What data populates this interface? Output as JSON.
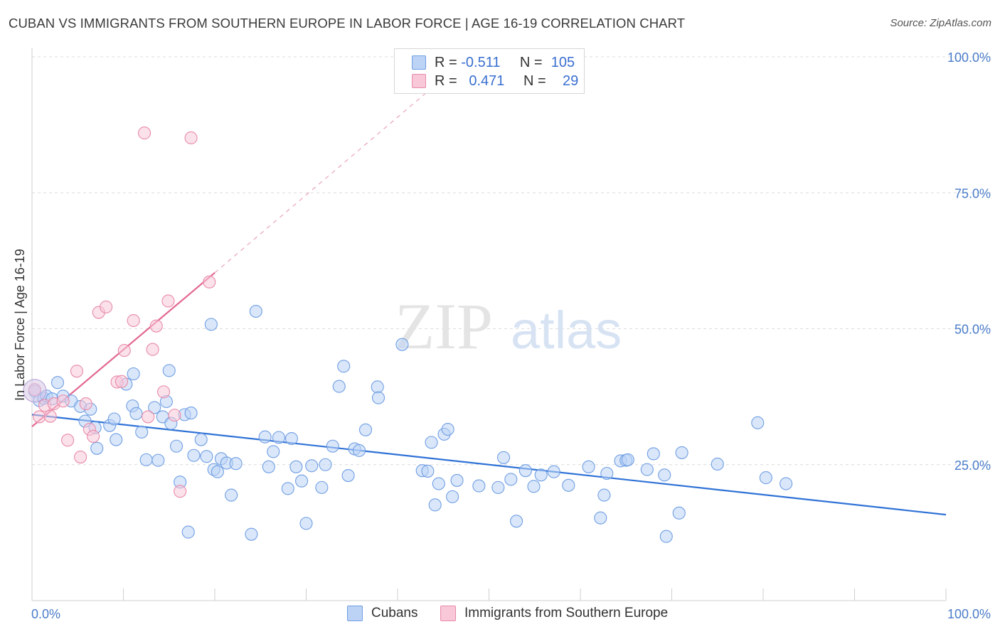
{
  "title": "CUBAN VS IMMIGRANTS FROM SOUTHERN EUROPE IN LABOR FORCE | AGE 16-19 CORRELATION CHART",
  "source": "Source: ZipAtlas.com",
  "watermark": {
    "zip": "ZIP",
    "atlas": "atlas"
  },
  "legend": {
    "rows": [
      {
        "r_label": "R =",
        "r_value": "-0.511",
        "n_label": "N =",
        "n_value": "105",
        "color_fill": "#bcd3f5",
        "color_edge": "#6f9ee3"
      },
      {
        "r_label": "R =",
        "r_value": "0.471",
        "n_label": "N =",
        "n_value": "29",
        "color_fill": "#f8c8d8",
        "color_edge": "#e88aa9"
      }
    ]
  },
  "chart_data": {
    "type": "scatter",
    "ylabel": "In Labor Force | Age 16-19",
    "xlim": [
      0,
      100
    ],
    "ylim": [
      0,
      100
    ],
    "x_tick_labels": [
      "0.0%",
      "100.0%"
    ],
    "y_tick_labels": [
      "25.0%",
      "50.0%",
      "75.0%",
      "100.0%"
    ],
    "y_tick_values": [
      25,
      50,
      75,
      100
    ],
    "grid": "horizontal dashed",
    "series": [
      {
        "name": "Cubans",
        "color": "#6f9ee3",
        "fill": "#bcd3f5",
        "trend": {
          "x": [
            0,
            100
          ],
          "y": [
            34.2,
            15.8
          ]
        },
        "points": [
          [
            0.3,
            38.5
          ],
          [
            0.8,
            36.8
          ],
          [
            1.3,
            37.2
          ],
          [
            1.6,
            37.6
          ],
          [
            2.2,
            37.1
          ],
          [
            2.8,
            40.1
          ],
          [
            3.4,
            37.6
          ],
          [
            4.3,
            36.7
          ],
          [
            5.3,
            35.7
          ],
          [
            6.4,
            35.2
          ],
          [
            5.8,
            33.0
          ],
          [
            7.1,
            28.0
          ],
          [
            6.9,
            31.8
          ],
          [
            8.5,
            32.2
          ],
          [
            9.2,
            29.6
          ],
          [
            9.0,
            33.4
          ],
          [
            11.0,
            35.8
          ],
          [
            11.4,
            34.4
          ],
          [
            10.3,
            39.8
          ],
          [
            11.1,
            41.7
          ],
          [
            12.0,
            31.0
          ],
          [
            12.5,
            25.9
          ],
          [
            13.4,
            35.5
          ],
          [
            13.8,
            25.8
          ],
          [
            14.3,
            33.8
          ],
          [
            14.7,
            36.6
          ],
          [
            15.0,
            42.3
          ],
          [
            15.2,
            32.6
          ],
          [
            15.8,
            28.4
          ],
          [
            16.2,
            21.8
          ],
          [
            16.7,
            34.2
          ],
          [
            17.1,
            12.6
          ],
          [
            17.4,
            34.5
          ],
          [
            17.7,
            26.7
          ],
          [
            18.5,
            29.6
          ],
          [
            19.1,
            26.5
          ],
          [
            19.6,
            50.8
          ],
          [
            19.9,
            24.1
          ],
          [
            20.3,
            23.7
          ],
          [
            20.7,
            26.1
          ],
          [
            21.3,
            25.3
          ],
          [
            21.8,
            19.4
          ],
          [
            22.3,
            25.2
          ],
          [
            24.0,
            12.2
          ],
          [
            24.5,
            53.2
          ],
          [
            25.5,
            30.1
          ],
          [
            25.9,
            24.6
          ],
          [
            26.4,
            27.4
          ],
          [
            27.0,
            30.0
          ],
          [
            28.0,
            20.6
          ],
          [
            28.4,
            29.8
          ],
          [
            28.9,
            24.6
          ],
          [
            29.5,
            22.0
          ],
          [
            30.0,
            14.2
          ],
          [
            30.6,
            24.8
          ],
          [
            31.7,
            20.8
          ],
          [
            32.1,
            25.0
          ],
          [
            32.9,
            28.4
          ],
          [
            33.6,
            39.4
          ],
          [
            34.1,
            43.1
          ],
          [
            34.6,
            23.0
          ],
          [
            35.3,
            27.9
          ],
          [
            35.8,
            27.6
          ],
          [
            36.5,
            31.4
          ],
          [
            37.8,
            39.3
          ],
          [
            37.9,
            37.3
          ],
          [
            40.5,
            47.1
          ],
          [
            42.7,
            23.9
          ],
          [
            43.3,
            23.8
          ],
          [
            43.7,
            29.1
          ],
          [
            44.1,
            17.6
          ],
          [
            44.5,
            21.5
          ],
          [
            45.1,
            30.6
          ],
          [
            45.5,
            31.5
          ],
          [
            46.0,
            19.1
          ],
          [
            46.5,
            22.1
          ],
          [
            48.9,
            21.1
          ],
          [
            51.0,
            20.8
          ],
          [
            51.6,
            26.3
          ],
          [
            52.4,
            22.3
          ],
          [
            53.0,
            14.6
          ],
          [
            54.0,
            23.9
          ],
          [
            54.9,
            21.0
          ],
          [
            55.7,
            23.1
          ],
          [
            57.1,
            23.7
          ],
          [
            58.7,
            21.2
          ],
          [
            60.9,
            24.6
          ],
          [
            62.2,
            15.2
          ],
          [
            62.6,
            19.4
          ],
          [
            62.9,
            23.4
          ],
          [
            64.4,
            25.7
          ],
          [
            65.0,
            25.8
          ],
          [
            65.2,
            25.9
          ],
          [
            67.3,
            24.1
          ],
          [
            68.0,
            27.0
          ],
          [
            69.2,
            23.1
          ],
          [
            69.4,
            11.8
          ],
          [
            70.8,
            16.1
          ],
          [
            71.1,
            27.2
          ],
          [
            75.0,
            25.1
          ],
          [
            79.4,
            32.7
          ],
          [
            80.3,
            22.6
          ],
          [
            82.5,
            21.5
          ]
        ]
      },
      {
        "name": "Immigrants from Southern Europe",
        "color": "#e88aa9",
        "fill": "#f8c8d8",
        "trend": {
          "x": [
            0,
            20
          ],
          "y": [
            32.0,
            60.3
          ]
        },
        "trend_extension": {
          "x": [
            20,
            43
          ],
          "y": [
            60.3,
            93.2
          ]
        },
        "points": [
          [
            0.3,
            38.8
          ],
          [
            0.8,
            33.8
          ],
          [
            1.4,
            35.9
          ],
          [
            2.0,
            33.9
          ],
          [
            2.4,
            36.2
          ],
          [
            3.4,
            36.7
          ],
          [
            3.9,
            29.5
          ],
          [
            4.9,
            42.2
          ],
          [
            5.3,
            26.4
          ],
          [
            5.9,
            36.2
          ],
          [
            6.3,
            31.5
          ],
          [
            6.7,
            30.2
          ],
          [
            7.3,
            53.0
          ],
          [
            8.1,
            54.0
          ],
          [
            9.3,
            40.2
          ],
          [
            9.8,
            40.3
          ],
          [
            10.1,
            46.0
          ],
          [
            11.1,
            51.5
          ],
          [
            12.3,
            86.0
          ],
          [
            12.7,
            33.8
          ],
          [
            13.2,
            46.2
          ],
          [
            13.6,
            50.5
          ],
          [
            14.4,
            38.4
          ],
          [
            14.9,
            55.1
          ],
          [
            15.6,
            34.1
          ],
          [
            16.2,
            20.1
          ],
          [
            17.4,
            85.1
          ],
          [
            19.4,
            58.6
          ]
        ]
      }
    ]
  },
  "bottom_legend": {
    "items": [
      "Cubans",
      "Immigrants from Southern Europe"
    ]
  }
}
